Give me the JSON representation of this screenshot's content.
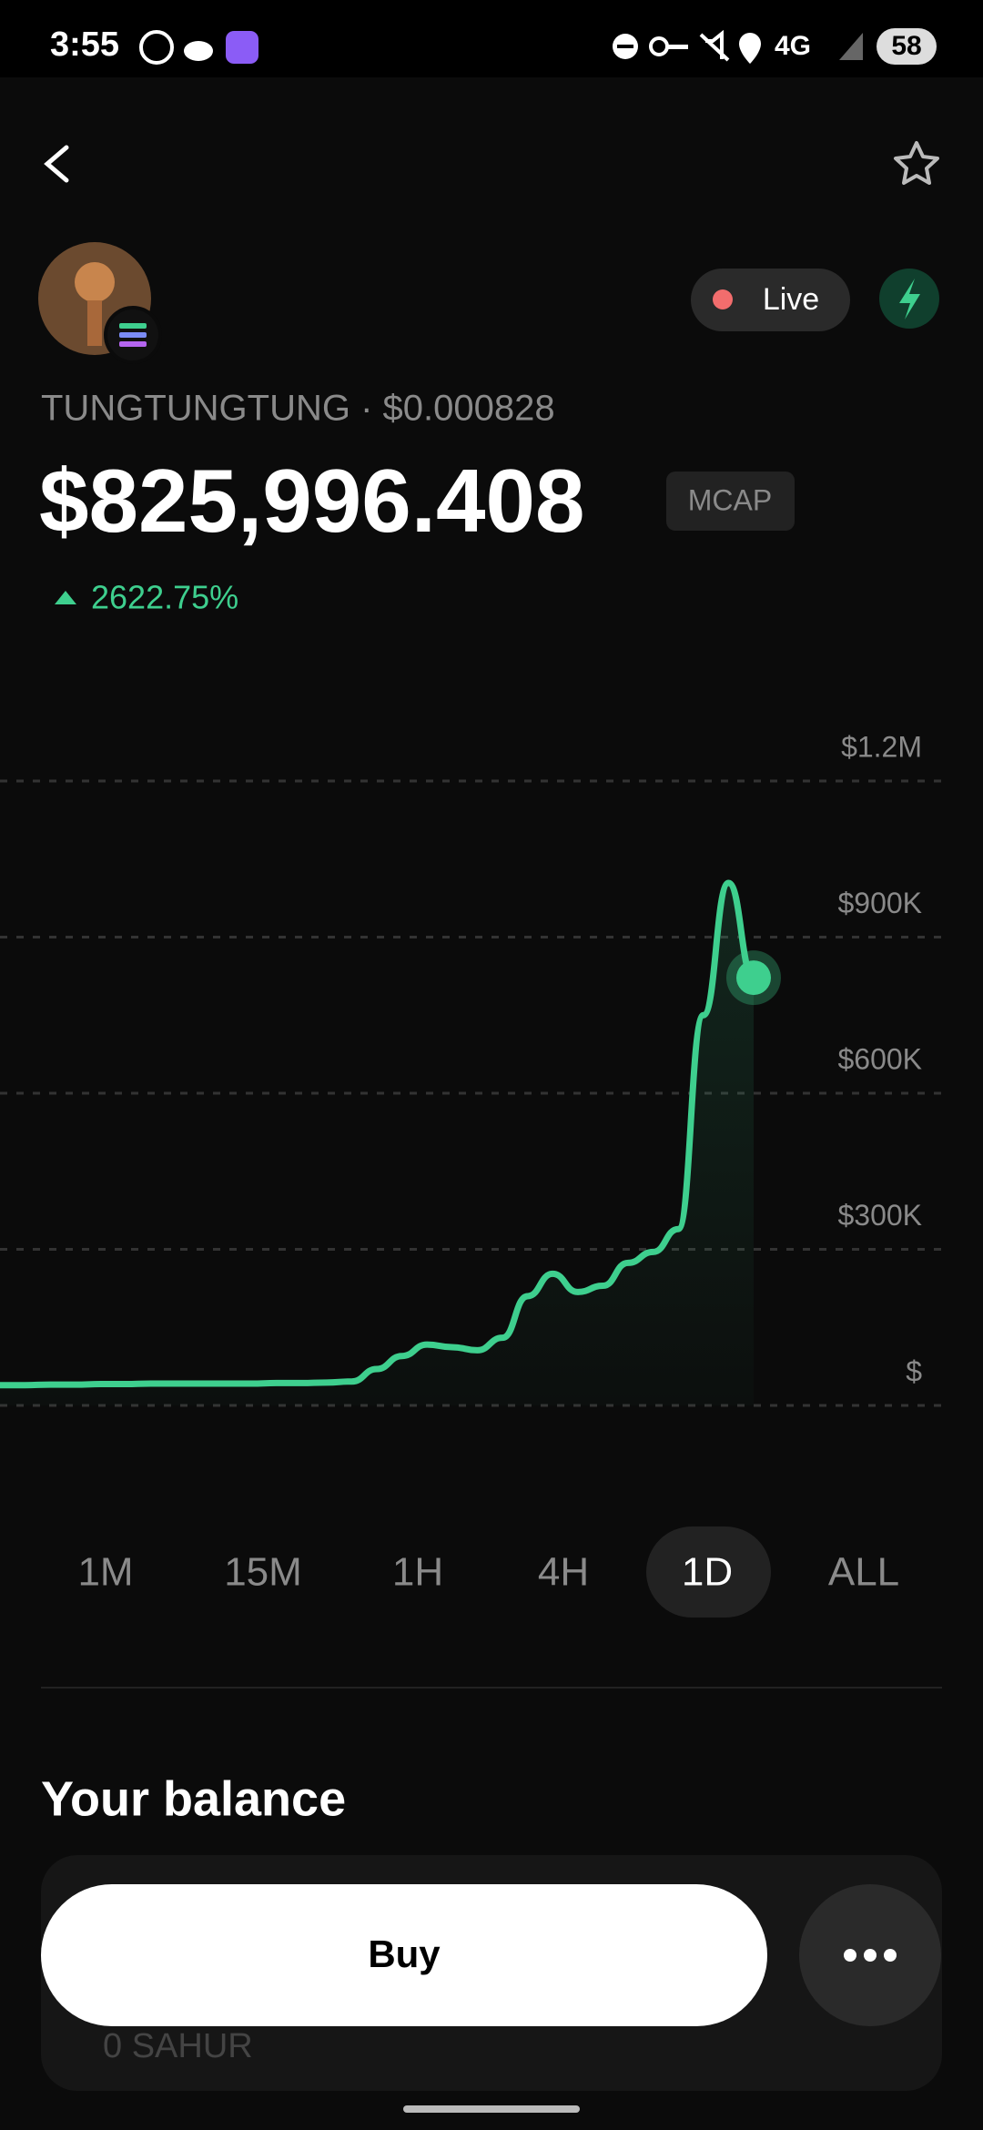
{
  "status_bar": {
    "time": "3:55",
    "battery": "58"
  },
  "token": {
    "name_price": "TUNGTUNGTUNG · $0.000828",
    "live": "Live",
    "market_cap": "$825,996.408",
    "mcap_label": "MCAP",
    "change": "2622.75%"
  },
  "chart_data": {
    "type": "line",
    "color": "#3ecf8e",
    "grid": true,
    "values": [
      39000,
      39000,
      40000,
      40000,
      41000,
      41000,
      42000,
      42000,
      42000,
      42000,
      42000,
      43000,
      43000,
      44000,
      46000,
      70000,
      95000,
      117000,
      112000,
      106000,
      130000,
      210000,
      253000,
      218000,
      230000,
      274000,
      295000,
      339000,
      750000,
      1004000,
      822000
    ],
    "ylim": [
      0,
      1200000
    ],
    "yticks": [
      {
        "value": 0,
        "label": "$"
      },
      {
        "value": 300000,
        "label": "$300K"
      },
      {
        "value": 600000,
        "label": "$600K"
      },
      {
        "value": 900000,
        "label": "$900K"
      },
      {
        "value": 1200000,
        "label": "$1.2M"
      }
    ]
  },
  "ranges": [
    "1M",
    "15M",
    "1H",
    "4H",
    "1D",
    "ALL"
  ],
  "balance": {
    "title": "Your balance",
    "amount": "0 SAHUR"
  },
  "actions": {
    "buy": "Buy"
  }
}
